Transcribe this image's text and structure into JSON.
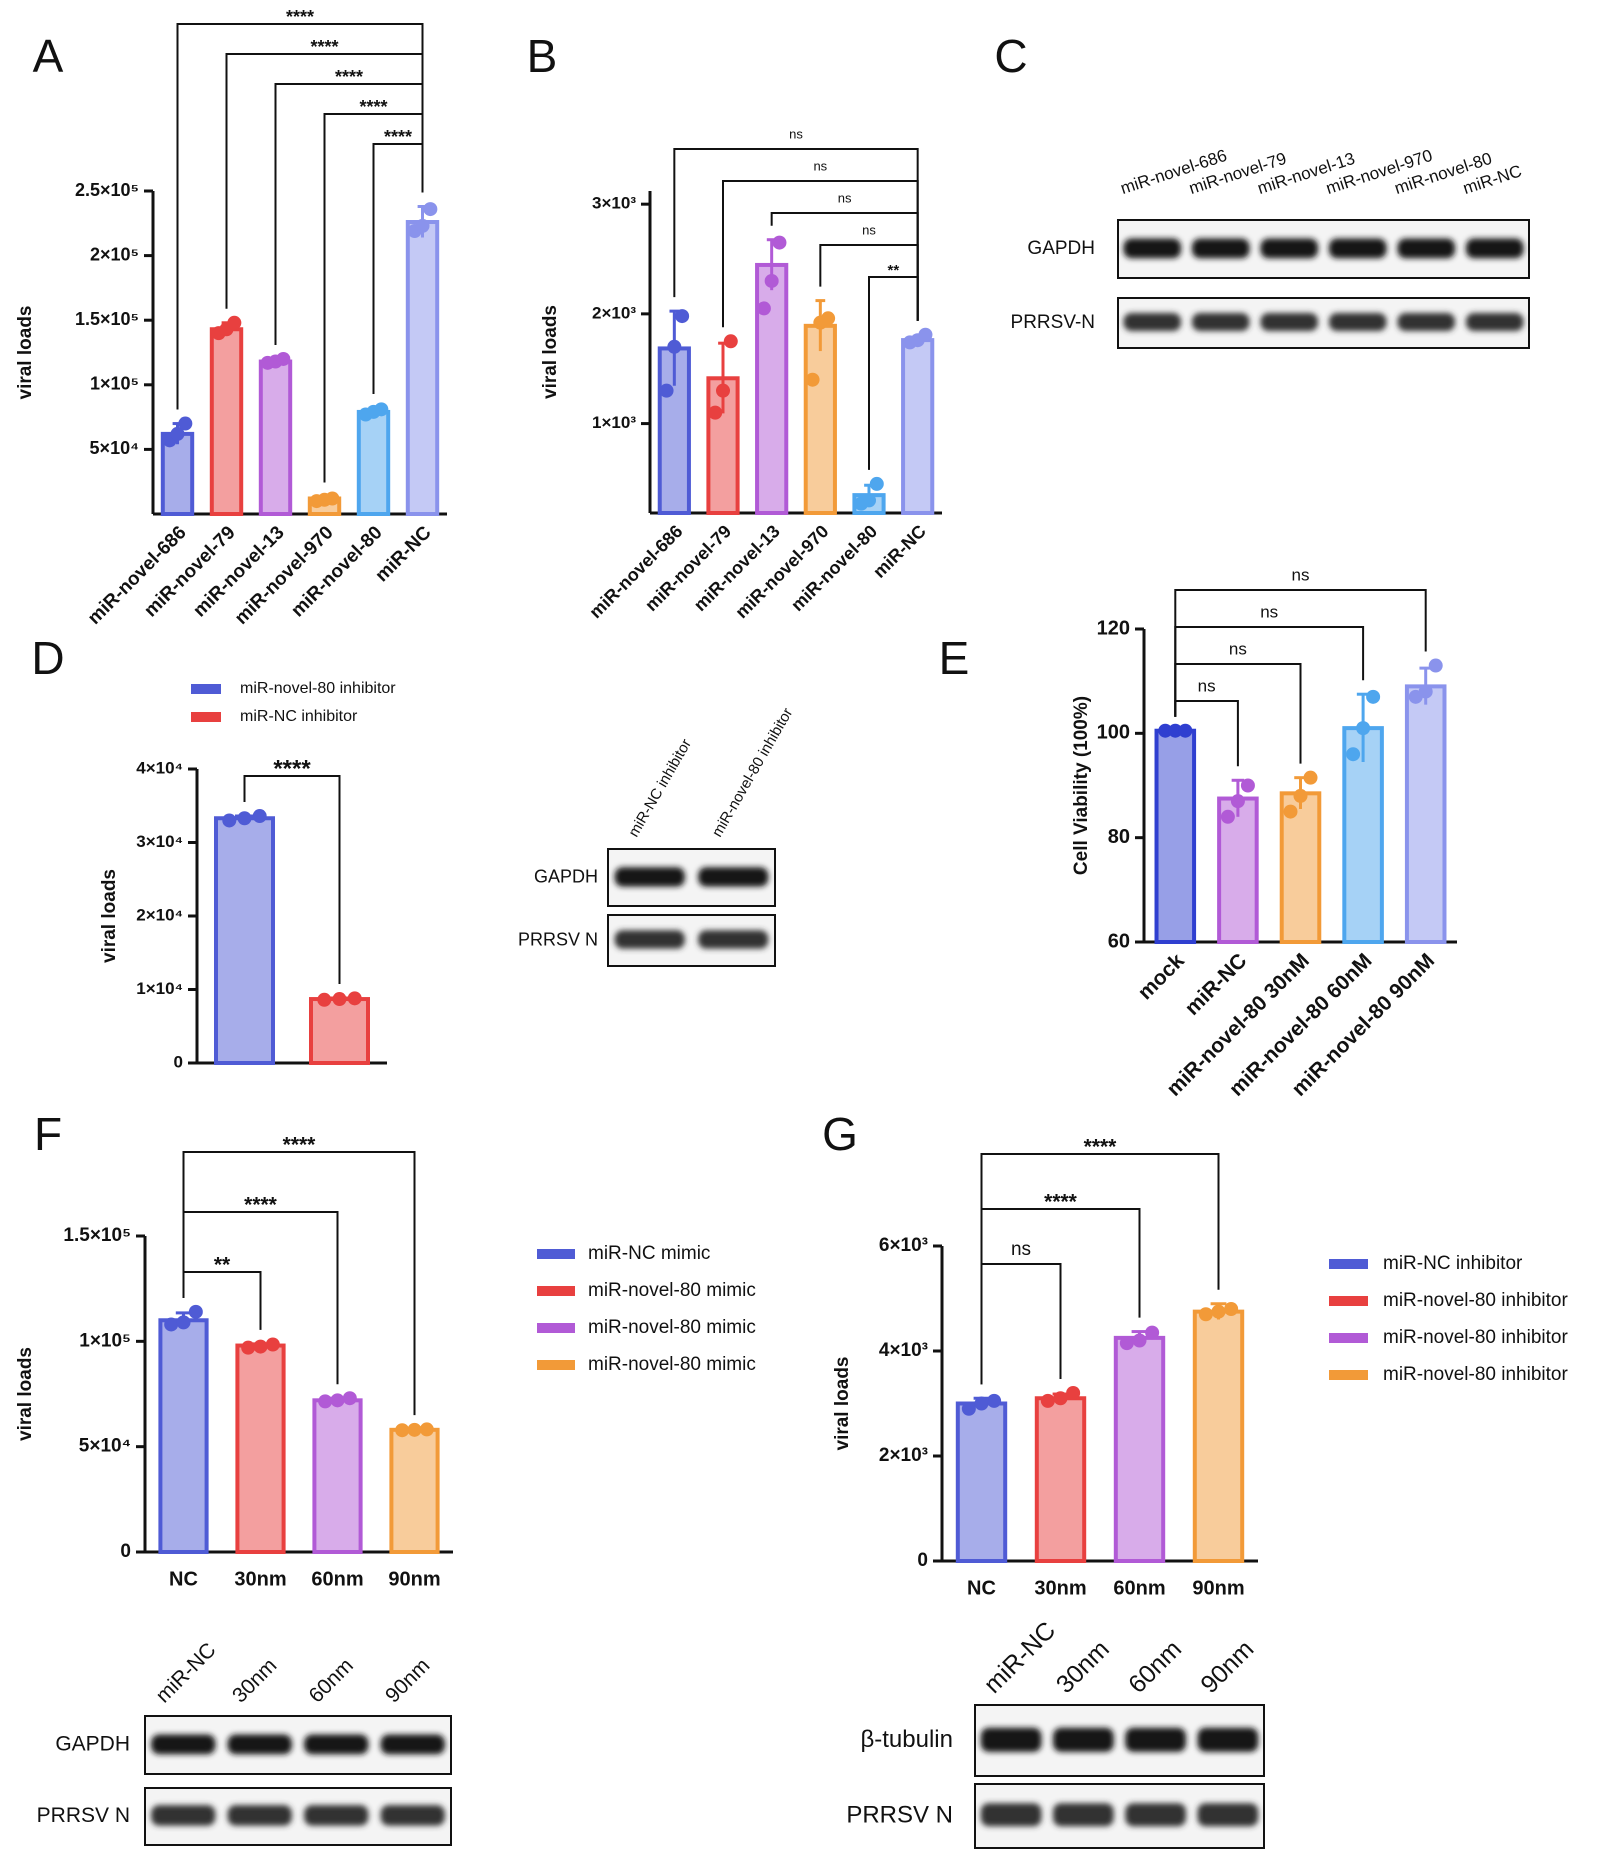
{
  "chart_data": [
    {
      "type": "bar",
      "panel": "A",
      "y_label": "viral loads",
      "categories": [
        "miR-novel-686",
        "miR-novel-79",
        "miR-novel-13",
        "miR-novel-970",
        "miR-novel-80",
        "miR-NC"
      ],
      "values": [
        62000,
        143000,
        118000,
        12000,
        79000,
        226000
      ],
      "errors": [
        8000,
        5000,
        2000,
        1500,
        3000,
        12000
      ],
      "points": [
        [
          57000,
          62000,
          70000
        ],
        [
          140000,
          143000,
          148000
        ],
        [
          117000,
          118000,
          120000
        ],
        [
          10000,
          11000,
          12000
        ],
        [
          77000,
          79000,
          81000
        ],
        [
          219000,
          223000,
          236000
        ]
      ],
      "colors": [
        "#4f5bd5",
        "#e8403f",
        "#b15ad6",
        "#f29a38",
        "#4ea6ee",
        "#8a93ec"
      ],
      "ylim": [
        0,
        250000
      ],
      "yticks": [
        {
          "value": 50000,
          "label": "5×10⁴"
        },
        {
          "value": 100000,
          "label": "1×10⁵"
        },
        {
          "value": 150000,
          "label": "1.5×10⁵"
        },
        {
          "value": 200000,
          "label": "2×10⁵"
        },
        {
          "value": 250000,
          "label": "2.5×10⁵"
        }
      ],
      "comparisons": [
        {
          "label": "****",
          "pair": [
            "miR-novel-686",
            "miR-NC"
          ]
        },
        {
          "label": "****",
          "pair": [
            "miR-novel-79",
            "miR-NC"
          ]
        },
        {
          "label": "****",
          "pair": [
            "miR-novel-13",
            "miR-NC"
          ]
        },
        {
          "label": "****",
          "pair": [
            "miR-novel-970",
            "miR-NC"
          ]
        },
        {
          "label": "****",
          "pair": [
            "miR-novel-80",
            "miR-NC"
          ]
        }
      ]
    },
    {
      "type": "bar",
      "panel": "B",
      "y_label": "viral loads",
      "categories": [
        "miR-novel-686",
        "miR-novel-79",
        "miR-novel-13",
        "miR-novel-970",
        "miR-novel-80",
        "miR-NC"
      ],
      "values": [
        1685,
        1413,
        2446,
        1891,
        348,
        1761
      ],
      "errors": [
        340,
        320,
        230,
        230,
        90,
        35
      ],
      "points": [
        [
          1300,
          1700,
          1980
        ],
        [
          1100,
          1300,
          1750
        ],
        [
          2050,
          2300,
          2650
        ],
        [
          1400,
          1920,
          1960
        ],
        [
          270,
          300,
          450
        ],
        [
          1740,
          1760,
          1810
        ]
      ],
      "colors": [
        "#4f5bd5",
        "#e8403f",
        "#b15ad6",
        "#f29a38",
        "#4ea6ee",
        "#8a93ec"
      ],
      "ylim": [
        185,
        3120
      ],
      "yticks": [
        {
          "value": 1000,
          "label": "1×10³"
        },
        {
          "value": 2000,
          "label": "2×10³"
        },
        {
          "value": 3000,
          "label": "3×10³"
        }
      ],
      "comparisons": [
        {
          "label": "ns",
          "pair": [
            "miR-novel-686",
            "miR-NC"
          ]
        },
        {
          "label": "ns",
          "pair": [
            "miR-novel-79",
            "miR-NC"
          ]
        },
        {
          "label": "ns",
          "pair": [
            "miR-novel-13",
            "miR-NC"
          ]
        },
        {
          "label": "ns",
          "pair": [
            "miR-novel-970",
            "miR-NC"
          ]
        },
        {
          "label": "**",
          "pair": [
            "miR-novel-80",
            "miR-NC"
          ]
        }
      ]
    },
    {
      "type": "bar",
      "panel": "D",
      "y_label": "viral loads",
      "categories": [
        null,
        null
      ],
      "values": [
        33300,
        8700
      ],
      "errors": [
        300,
        150
      ],
      "points": [
        [
          33000,
          33300,
          33600
        ],
        [
          8600,
          8700,
          8800
        ]
      ],
      "colors": [
        "#4f5bd5",
        "#e8403f"
      ],
      "legend": [
        {
          "name": "miR-novel-80 inhibitor",
          "color": "#4f5bd5"
        },
        {
          "name": "miR-NC inhibitor",
          "color": "#e8403f"
        }
      ],
      "ylim": [
        0,
        40000
      ],
      "yticks": [
        0,
        {
          "value": 10000,
          "label": "1×10⁴"
        },
        {
          "value": 20000,
          "label": "2×10⁴"
        },
        {
          "value": 30000,
          "label": "3×10⁴"
        },
        {
          "value": 40000,
          "label": "4×10⁴"
        }
      ],
      "comparisons": [
        {
          "label": "****",
          "index_pair": null
        }
      ]
    },
    {
      "type": "bar",
      "panel": "E",
      "y_label": "Cell Viability (100%)",
      "categories": [
        "mock",
        "miR-NC",
        "miR-novel-80 30nM",
        "miR-novel-80 60nM",
        "miR-novel-80 90nM"
      ],
      "values": [
        100.5,
        87.5,
        88.5,
        101,
        109
      ],
      "errors": [
        0,
        3.5,
        3,
        6.5,
        3.5
      ],
      "points": [
        [
          100.5,
          100.5,
          100.5
        ],
        [
          84,
          87,
          90
        ],
        [
          85,
          88,
          91.5
        ],
        [
          96,
          101,
          107
        ],
        [
          107,
          108,
          113
        ]
      ],
      "colors": [
        "#2f3fd0",
        "#b15ad6",
        "#f29a38",
        "#4ea6ee",
        "#8a93ec"
      ],
      "ylim": [
        60,
        120
      ],
      "yticks": [
        60,
        80,
        100,
        120
      ],
      "comparisons": [
        {
          "label": "ns",
          "pair": [
            "mock",
            "miR-novel-80 90nM"
          ]
        },
        {
          "label": "ns",
          "pair": [
            "mock",
            "miR-novel-80 60nM"
          ]
        },
        {
          "label": "ns",
          "pair": [
            "mock",
            "miR-novel-80 30nM"
          ]
        },
        {
          "label": "ns",
          "pair": [
            "mock",
            "miR-NC"
          ]
        }
      ]
    },
    {
      "type": "bar",
      "panel": "F",
      "y_label": "viral loads",
      "categories": [
        "NC",
        "30nm",
        "60nm",
        "90nm"
      ],
      "values": [
        110000,
        98000,
        72000,
        58000
      ],
      "errors": [
        3500,
        800,
        1000,
        300
      ],
      "points": [
        [
          108000,
          109000,
          114000
        ],
        [
          97000,
          97500,
          98500
        ],
        [
          71500,
          72000,
          73000
        ],
        [
          57800,
          58000,
          58200
        ]
      ],
      "colors": [
        "#4f5bd5",
        "#e8403f",
        "#b15ad6",
        "#f29a38"
      ],
      "legend": [
        {
          "name": "miR-NC mimic",
          "color": "#4f5bd5"
        },
        {
          "name": "miR-novel-80 mimic",
          "color": "#e8403f"
        },
        {
          "name": "miR-novel-80 mimic",
          "color": "#b15ad6"
        },
        {
          "name": "miR-novel-80 mimic",
          "color": "#f29a38"
        }
      ],
      "ylim": [
        0,
        150000
      ],
      "yticks": [
        0,
        {
          "value": 50000,
          "label": "5×10⁴"
        },
        {
          "value": 100000,
          "label": "1×10⁵"
        },
        {
          "value": 150000,
          "label": "1.5×10⁵"
        }
      ],
      "comparisons": [
        {
          "label": "****",
          "pair": [
            "NC",
            "90nm"
          ]
        },
        {
          "label": "****",
          "pair": [
            "NC",
            "60nm"
          ]
        },
        {
          "label": "**",
          "pair": [
            "NC",
            "30nm"
          ]
        }
      ]
    },
    {
      "type": "bar",
      "panel": "G",
      "y_label": "viral loads",
      "categories": [
        "NC",
        "30nm",
        "60nm",
        "90nm"
      ],
      "values": [
        3000,
        3100,
        4250,
        4750
      ],
      "errors": [
        100,
        80,
        120,
        150
      ],
      "points": [
        [
          2900,
          3000,
          3050
        ],
        [
          3050,
          3100,
          3200
        ],
        [
          4150,
          4200,
          4350
        ],
        [
          4700,
          4750,
          4800
        ]
      ],
      "colors": [
        "#4f5bd5",
        "#e8403f",
        "#b15ad6",
        "#f29a38"
      ],
      "legend": [
        {
          "name": "miR-NC inhibitor",
          "color": "#4f5bd5"
        },
        {
          "name": "miR-novel-80 inhibitor",
          "color": "#e8403f"
        },
        {
          "name": "miR-novel-80 inhibitor",
          "color": "#b15ad6"
        },
        {
          "name": "miR-novel-80 inhibitor",
          "color": "#f29a38"
        }
      ],
      "ylim": [
        0,
        6000
      ],
      "yticks": [
        0,
        {
          "value": 2000,
          "label": "2×10³"
        },
        {
          "value": 4000,
          "label": "4×10³"
        },
        {
          "value": 6000,
          "label": "6×10³"
        }
      ],
      "comparisons": [
        {
          "label": "****",
          "pair": [
            "NC",
            "90nm"
          ]
        },
        {
          "label": "****",
          "pair": [
            "NC",
            "60nm"
          ]
        },
        {
          "label": "ns",
          "pair": [
            "NC",
            "30nm"
          ]
        }
      ]
    }
  ],
  "blots": [
    {
      "panel": "C",
      "lanes": [
        "miR-novel-686",
        "miR-novel-79",
        "miR-novel-13",
        "miR-novel-970",
        "miR-novel-80",
        "miR-NC"
      ],
      "rows": [
        "GAPDH",
        "PRRSV-N"
      ]
    },
    {
      "lanes": [
        "miR-NC inhibitor",
        "miR-novel-80 inhibitor"
      ],
      "rows": [
        "GAPDH",
        "PRRSV N"
      ]
    },
    {
      "lanes": [
        "miR-NC",
        "30nm",
        "60nm",
        "90nm"
      ],
      "rows": [
        "GAPDH",
        "PRRSV N"
      ]
    },
    {
      "lanes": [
        "miR-NC",
        "30nm",
        "60nm",
        "90nm"
      ],
      "rows": [
        "β-tubulin",
        "PRRSV N"
      ]
    }
  ]
}
